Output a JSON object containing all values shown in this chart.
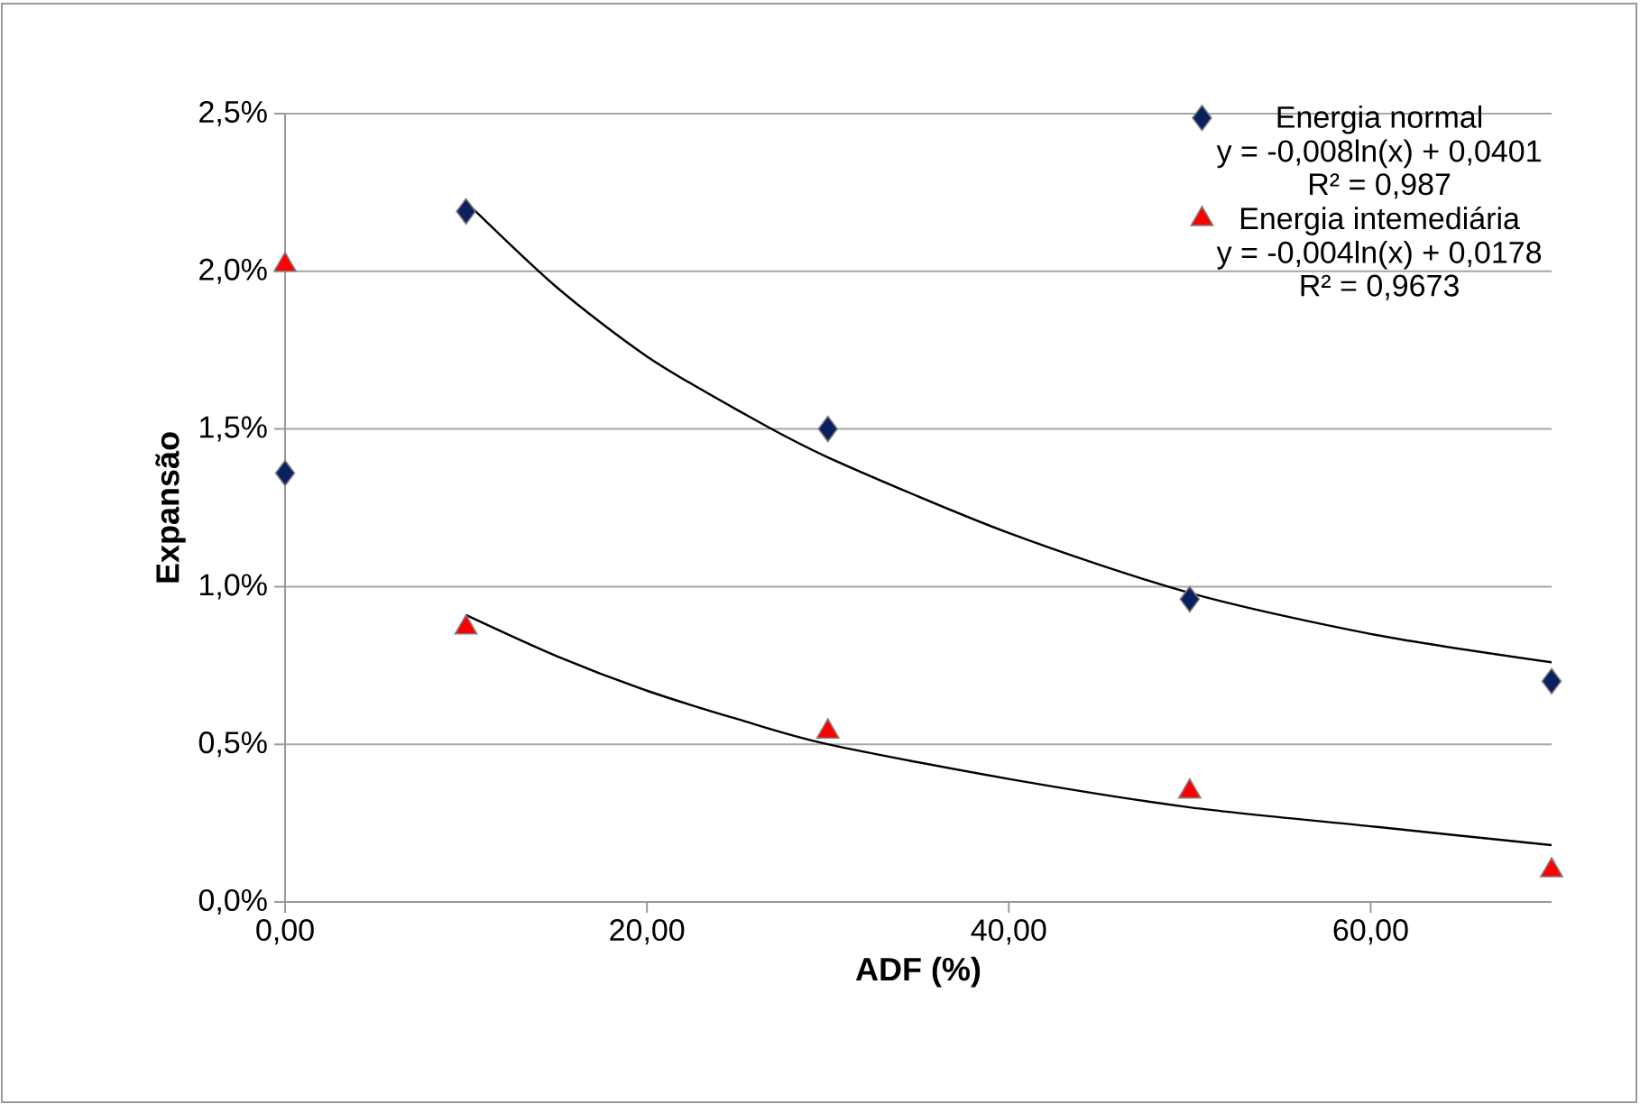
{
  "chart_data": {
    "type": "scatter",
    "xlabel": "ADF (%)",
    "ylabel": "Expansão",
    "xlim": [
      0,
      70
    ],
    "ylim": [
      0,
      2.5
    ],
    "xticks": [
      {
        "value": 0,
        "label": "0,00"
      },
      {
        "value": 20,
        "label": "20,00"
      },
      {
        "value": 40,
        "label": "40,00"
      },
      {
        "value": 60,
        "label": "60,00"
      }
    ],
    "yticks": [
      {
        "value": 0,
        "label": "0,0%"
      },
      {
        "value": 0.5,
        "label": "0,5%"
      },
      {
        "value": 1,
        "label": "1,0%"
      },
      {
        "value": 1.5,
        "label": "1,5%"
      },
      {
        "value": 2,
        "label": "2,0%"
      },
      {
        "value": 2.5,
        "label": "2,5%"
      }
    ],
    "grid": "y",
    "legend": "top right",
    "annotations": [
      "y = -0,008ln(x) + 0,0401",
      "R² = 0,987",
      "y = -0,004ln(x) + 0,0178",
      "R² = 0,9673"
    ],
    "series": [
      {
        "name": "Energia normal",
        "marker": "diamond",
        "color": "#0b2060",
        "x": [
          0,
          10,
          30,
          50,
          70
        ],
        "values": [
          1.36,
          2.19,
          1.5,
          0.96,
          0.7
        ]
      },
      {
        "name": "Energia intemediária",
        "marker": "triangle",
        "color": "#ff0000",
        "x": [
          0,
          10,
          30,
          50,
          70
        ],
        "values": [
          2.02,
          0.87,
          0.54,
          0.35,
          0.1
        ]
      },
      {
        "type": "line",
        "color": "#000000",
        "marker": "none",
        "x": [
          10,
          15,
          20,
          25,
          30,
          40,
          50,
          60,
          70
        ],
        "values": [
          2.22,
          1.95,
          1.73,
          1.56,
          1.41,
          1.17,
          0.98,
          0.85,
          0.76
        ]
      },
      {
        "type": "line",
        "color": "#000000",
        "marker": "none",
        "x": [
          10,
          15,
          20,
          25,
          30,
          40,
          50,
          60,
          70
        ],
        "values": [
          0.91,
          0.78,
          0.67,
          0.58,
          0.5,
          0.39,
          0.3,
          0.24,
          0.18
        ]
      }
    ]
  }
}
